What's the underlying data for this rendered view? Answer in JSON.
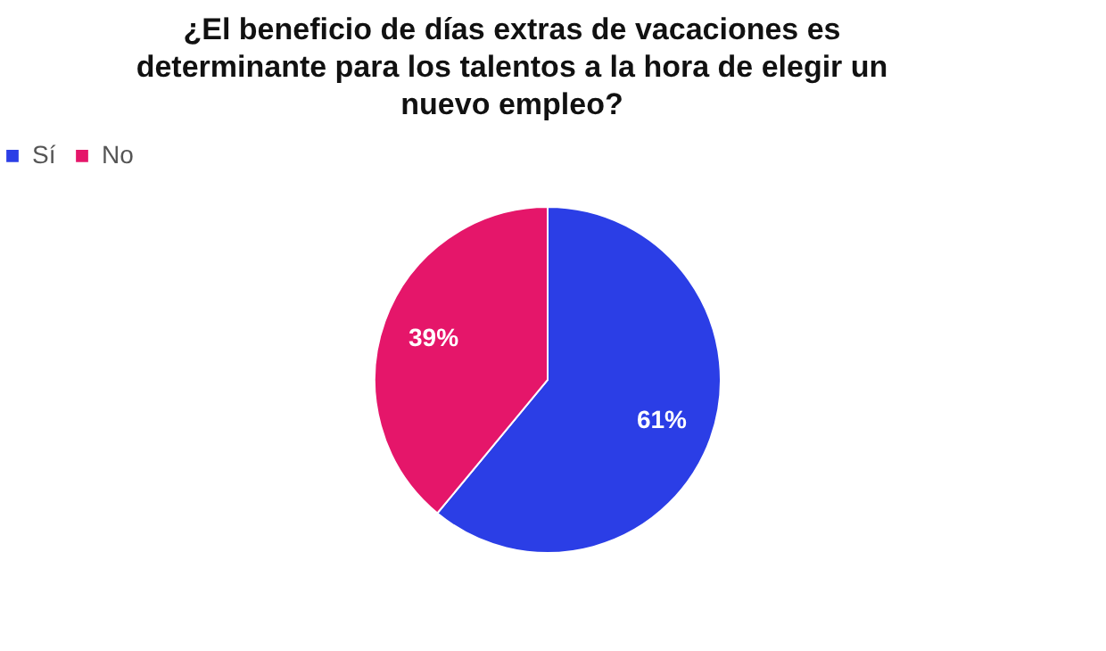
{
  "chart_data": {
    "type": "pie",
    "title": "¿El beneficio de días extras de vacaciones es determinante para los talentos a la hora de elegir un nuevo empleo?",
    "categories": [
      "Sí",
      "No"
    ],
    "values": [
      61,
      39
    ],
    "colors": [
      "#2b3ee6",
      "#e5166a"
    ],
    "legend": "top",
    "value_labels": [
      "61%",
      "39%"
    ]
  }
}
